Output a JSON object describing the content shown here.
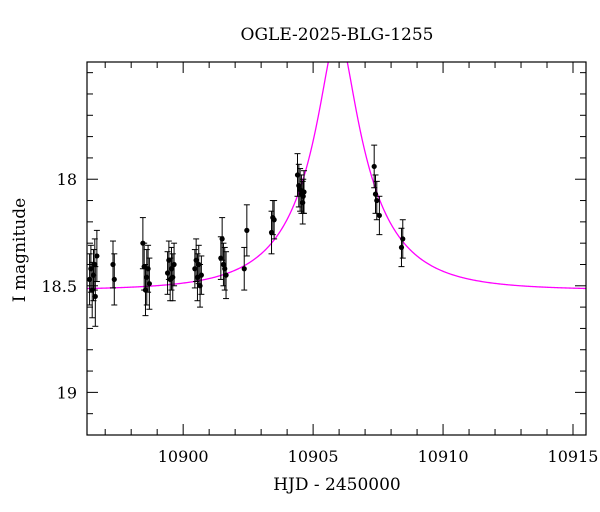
{
  "chart_data": {
    "type": "scatter",
    "title": "OGLE-2025-BLG-1255",
    "xlabel": "HJD - 2450000",
    "ylabel": "I magnitude",
    "xlim": [
      10896.3,
      10915.5
    ],
    "ylim": [
      19.2,
      17.45
    ],
    "y_inverted": true,
    "x_ticks": [
      10900,
      10905,
      10910,
      10915
    ],
    "x_tick_labels": [
      "10900",
      "10905",
      "10910",
      "10915"
    ],
    "y_ticks": [
      18,
      18.5,
      19
    ],
    "y_tick_labels": [
      "18",
      "18.5",
      "19"
    ],
    "x_minor_step": 1,
    "y_minor_step": 0.1,
    "grid": false,
    "colors": {
      "data": "#000000",
      "model": "#ff00ff"
    },
    "model": {
      "type": "paczynski",
      "t0": 10905.95,
      "u0": 0.2,
      "tE": 3.0,
      "base_mag": 18.52,
      "blend_fraction": 0.5
    },
    "series": [
      {
        "type": "errorbar",
        "x": [
          10896.4,
          10896.45,
          10896.5,
          10896.55,
          10896.6,
          10896.62,
          10896.68,
          10897.3,
          10897.35,
          10898.45,
          10898.5,
          10898.55,
          10898.6,
          10898.65,
          10898.7,
          10899.4,
          10899.45,
          10899.5,
          10899.55,
          10899.6,
          10899.65,
          10900.45,
          10900.5,
          10900.55,
          10900.6,
          10900.65,
          10900.7,
          10901.45,
          10901.5,
          10901.55,
          10901.6,
          10901.65,
          10902.35,
          10902.45,
          10903.4,
          10903.45,
          10903.5,
          10904.4,
          10904.45,
          10904.5,
          10904.55,
          10904.6,
          10904.62,
          10904.65,
          10907.35,
          10907.4,
          10907.45,
          10907.55,
          10908.4,
          10908.45
        ],
        "y": [
          18.47,
          18.42,
          18.52,
          18.45,
          18.4,
          18.55,
          18.36,
          18.4,
          18.47,
          18.3,
          18.41,
          18.52,
          18.46,
          18.42,
          18.49,
          18.44,
          18.38,
          18.47,
          18.42,
          18.46,
          18.4,
          18.42,
          18.38,
          18.46,
          18.4,
          18.5,
          18.45,
          18.37,
          18.28,
          18.4,
          18.42,
          18.45,
          18.42,
          18.24,
          18.25,
          18.18,
          18.19,
          17.98,
          18.03,
          18.05,
          18.07,
          18.11,
          18.08,
          18.06,
          17.94,
          18.07,
          18.1,
          18.17,
          18.32,
          18.28
        ],
        "yerr": [
          0.12,
          0.11,
          0.13,
          0.12,
          0.12,
          0.14,
          0.12,
          0.11,
          0.12,
          0.12,
          0.11,
          0.12,
          0.13,
          0.11,
          0.12,
          0.1,
          0.09,
          0.1,
          0.1,
          0.11,
          0.1,
          0.09,
          0.1,
          0.11,
          0.09,
          0.1,
          0.09,
          0.1,
          0.1,
          0.1,
          0.1,
          0.11,
          0.1,
          0.12,
          0.1,
          0.08,
          0.09,
          0.1,
          0.1,
          0.1,
          0.09,
          0.1,
          0.08,
          0.1,
          0.1,
          0.09,
          0.09,
          0.09,
          0.09,
          0.09
        ]
      }
    ]
  }
}
